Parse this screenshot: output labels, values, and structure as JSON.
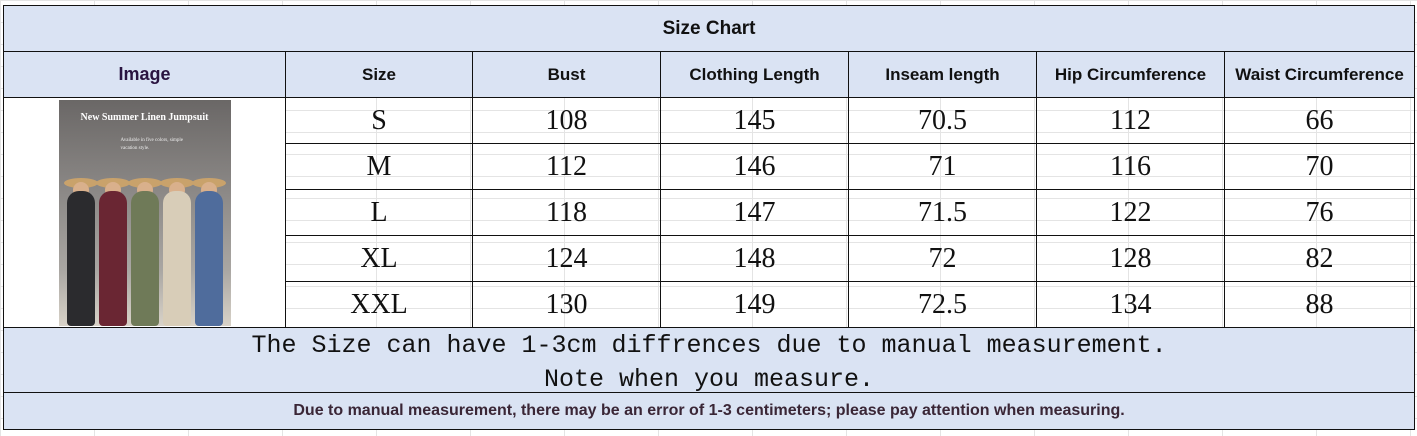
{
  "title": "Size Chart",
  "headers": [
    "Image",
    "Size",
    "Bust",
    "Clothing Length",
    "Inseam length",
    "Hip Circumference",
    "Waist Circumference"
  ],
  "image": {
    "title": "New Summer Linen Jumpsuit",
    "subtitle": "Available in five colors, simple vacation style.",
    "colors": [
      "#2b2b2e",
      "#6a2633",
      "#6f7a58",
      "#d8cdb8",
      "#4f6c9c"
    ]
  },
  "rows": [
    [
      "S",
      "108",
      "145",
      "70.5",
      "112",
      "66"
    ],
    [
      "M",
      "112",
      "146",
      "71",
      "116",
      "70"
    ],
    [
      "L",
      "118",
      "147",
      "71.5",
      "122",
      "76"
    ],
    [
      "XL",
      "124",
      "148",
      "72",
      "128",
      "82"
    ],
    [
      "XXL",
      "130",
      "149",
      "72.5",
      "134",
      "88"
    ]
  ],
  "note": {
    "line1": "The Size can have 1-3cm diffrences due to manual measurement.",
    "line2": "Note when you measure."
  },
  "footer": "Due to manual measurement, there may be an error of 1-3 centimeters; please pay attention when measuring."
}
